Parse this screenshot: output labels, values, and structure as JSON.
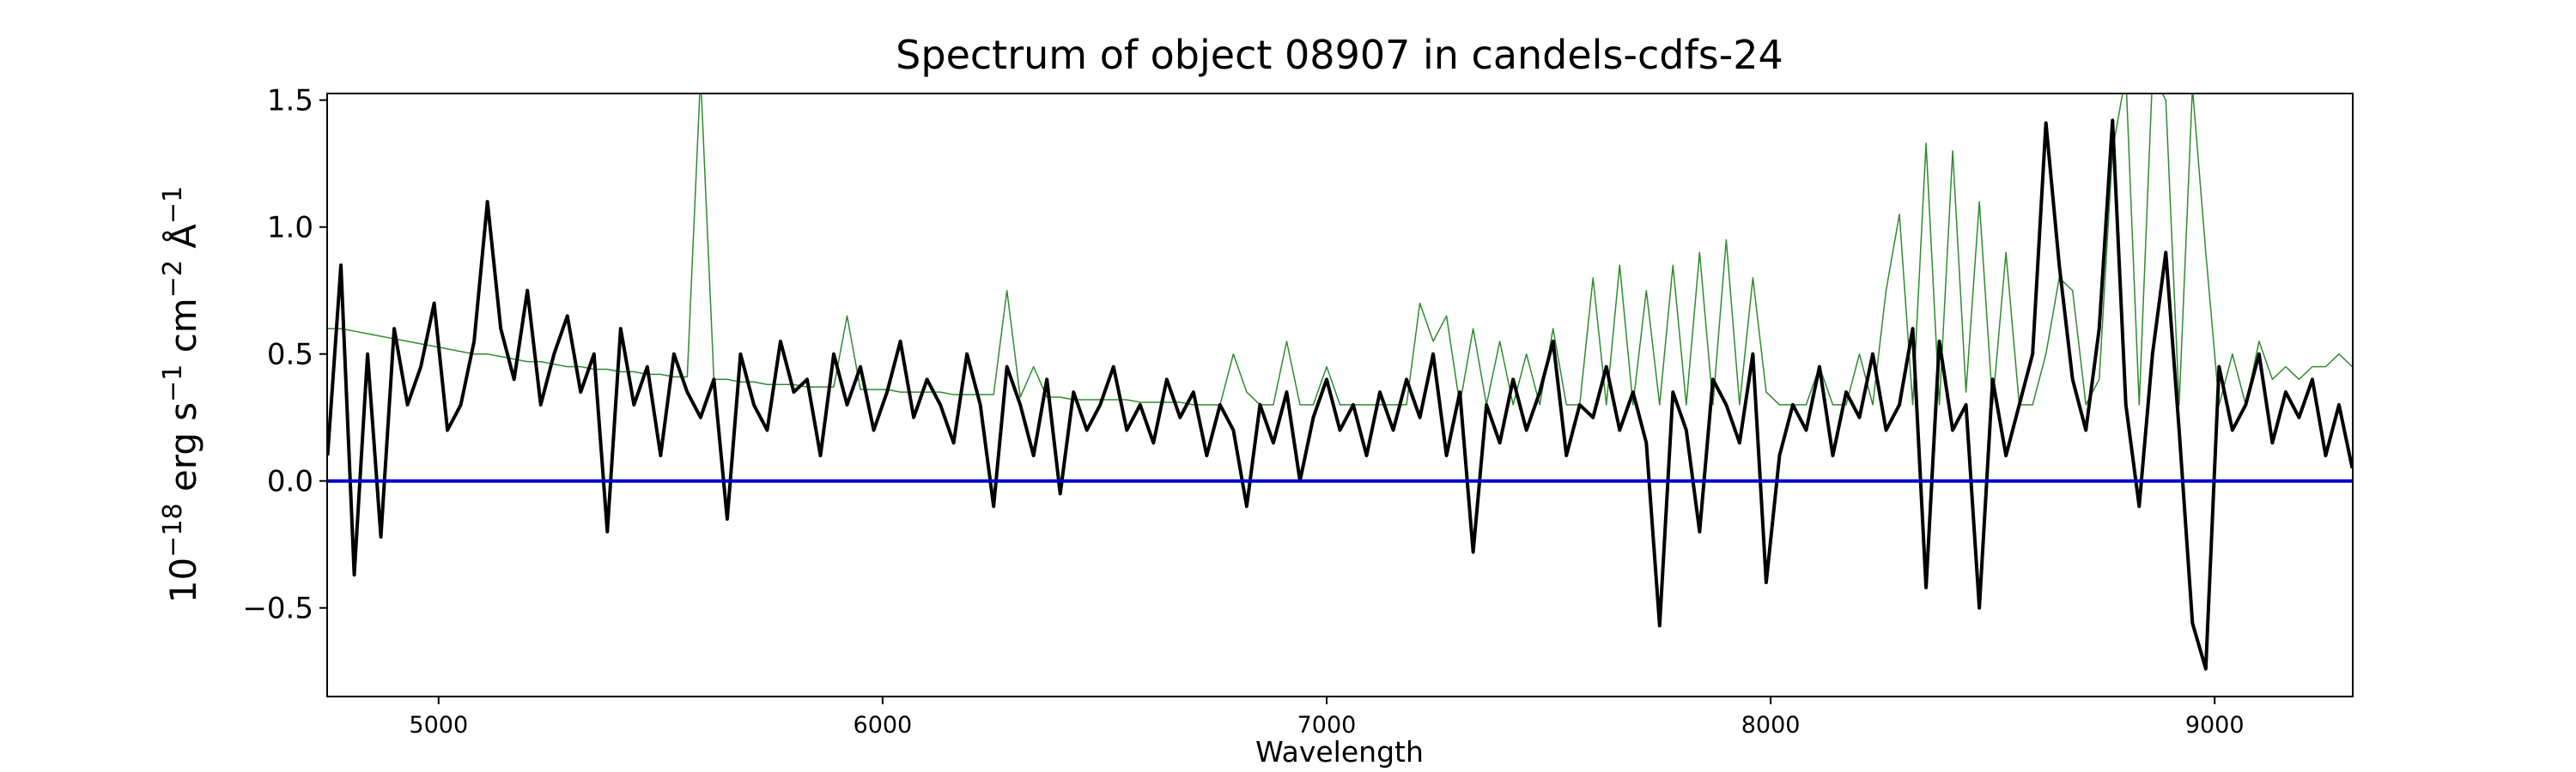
{
  "chart_data": {
    "type": "line",
    "title": "Spectrum of object 08907 in candels-cdfs-24",
    "xlabel": "Wavelength",
    "ylabel": [
      {
        "text": "10"
      },
      {
        "sup": "−18"
      },
      {
        "text": " erg s"
      },
      {
        "sup": "−1"
      },
      {
        "text": " cm"
      },
      {
        "sup": "−2"
      },
      {
        "text": " Å"
      },
      {
        "sup": "−1"
      }
    ],
    "xlim": [
      4749,
      9311
    ],
    "ylim": [
      -0.849,
      1.526
    ],
    "xticks": [
      5000,
      6000,
      7000,
      8000,
      9000
    ],
    "yticks": [
      {
        "value": -0.5,
        "label": "−0.5"
      },
      {
        "value": 0,
        "label": "0.0"
      },
      {
        "value": 0.5,
        "label": "0.5"
      },
      {
        "value": 1,
        "label": "1.0"
      },
      {
        "value": 1.5,
        "label": "1.5"
      }
    ],
    "grid": false,
    "zero_line": {
      "value": 0,
      "color": "#0000cc"
    },
    "x": [
      4750,
      4780,
      4810,
      4840,
      4870,
      4900,
      4930,
      4960,
      4990,
      5020,
      5050,
      5080,
      5110,
      5140,
      5170,
      5200,
      5230,
      5260,
      5290,
      5320,
      5350,
      5380,
      5410,
      5440,
      5470,
      5500,
      5530,
      5560,
      5590,
      5620,
      5650,
      5680,
      5710,
      5740,
      5770,
      5800,
      5830,
      5860,
      5890,
      5920,
      5950,
      5980,
      6010,
      6040,
      6070,
      6100,
      6130,
      6160,
      6190,
      6220,
      6250,
      6280,
      6310,
      6340,
      6370,
      6400,
      6430,
      6460,
      6490,
      6520,
      6550,
      6580,
      6610,
      6640,
      6670,
      6700,
      6730,
      6760,
      6790,
      6820,
      6850,
      6880,
      6910,
      6940,
      6970,
      7000,
      7030,
      7060,
      7090,
      7120,
      7150,
      7180,
      7210,
      7240,
      7270,
      7300,
      7330,
      7360,
      7390,
      7420,
      7450,
      7480,
      7510,
      7540,
      7570,
      7600,
      7630,
      7660,
      7690,
      7720,
      7750,
      7780,
      7810,
      7840,
      7870,
      7900,
      7930,
      7960,
      7990,
      8020,
      8050,
      8080,
      8110,
      8140,
      8170,
      8200,
      8230,
      8260,
      8290,
      8320,
      8350,
      8380,
      8410,
      8440,
      8470,
      8500,
      8530,
      8560,
      8590,
      8620,
      8650,
      8680,
      8710,
      8740,
      8770,
      8800,
      8830,
      8860,
      8890,
      8920,
      8950,
      8980,
      9010,
      9040,
      9070,
      9100,
      9130,
      9160,
      9190,
      9220,
      9250,
      9280,
      9310
    ],
    "series": [
      {
        "color": "#2e8b2e",
        "width": 1.5,
        "values": [
          0.6,
          0.6,
          0.59,
          0.58,
          0.57,
          0.56,
          0.55,
          0.54,
          0.53,
          0.52,
          0.51,
          0.5,
          0.5,
          0.49,
          0.48,
          0.47,
          0.47,
          0.46,
          0.45,
          0.45,
          0.44,
          0.44,
          0.43,
          0.43,
          0.42,
          0.42,
          0.41,
          0.41,
          1.6,
          0.4,
          0.4,
          0.39,
          0.39,
          0.38,
          0.38,
          0.38,
          0.37,
          0.37,
          0.37,
          0.65,
          0.36,
          0.36,
          0.36,
          0.35,
          0.35,
          0.35,
          0.35,
          0.34,
          0.34,
          0.34,
          0.34,
          0.75,
          0.33,
          0.45,
          0.33,
          0.33,
          0.32,
          0.32,
          0.32,
          0.32,
          0.32,
          0.31,
          0.31,
          0.31,
          0.31,
          0.3,
          0.3,
          0.3,
          0.5,
          0.35,
          0.3,
          0.3,
          0.55,
          0.3,
          0.3,
          0.45,
          0.3,
          0.3,
          0.3,
          0.3,
          0.3,
          0.3,
          0.7,
          0.55,
          0.65,
          0.3,
          0.6,
          0.3,
          0.55,
          0.3,
          0.5,
          0.3,
          0.6,
          0.3,
          0.3,
          0.8,
          0.3,
          0.85,
          0.3,
          0.75,
          0.3,
          0.85,
          0.3,
          0.9,
          0.3,
          0.95,
          0.3,
          0.8,
          0.35,
          0.3,
          0.3,
          0.3,
          0.45,
          0.3,
          0.3,
          0.5,
          0.3,
          0.75,
          1.05,
          0.3,
          1.33,
          0.3,
          1.3,
          0.35,
          1.1,
          0.3,
          0.9,
          0.3,
          0.3,
          0.5,
          0.8,
          0.75,
          0.3,
          0.4,
          1.3,
          1.6,
          0.3,
          1.6,
          1.5,
          0.3,
          1.55,
          0.9,
          0.3,
          0.5,
          0.3,
          0.55,
          0.4,
          0.45,
          0.4,
          0.45,
          0.45,
          0.5,
          0.45
        ]
      },
      {
        "color": "#000000",
        "width": 4,
        "values": [
          0.1,
          0.85,
          -0.37,
          0.5,
          -0.22,
          0.6,
          0.3,
          0.45,
          0.7,
          0.2,
          0.3,
          0.55,
          1.1,
          0.6,
          0.4,
          0.75,
          0.3,
          0.5,
          0.65,
          0.35,
          0.5,
          -0.2,
          0.6,
          0.3,
          0.45,
          0.1,
          0.5,
          0.35,
          0.25,
          0.4,
          -0.15,
          0.5,
          0.3,
          0.2,
          0.55,
          0.35,
          0.4,
          0.1,
          0.5,
          0.3,
          0.45,
          0.2,
          0.35,
          0.55,
          0.25,
          0.4,
          0.3,
          0.15,
          0.5,
          0.3,
          -0.1,
          0.45,
          0.3,
          0.1,
          0.4,
          -0.05,
          0.35,
          0.2,
          0.3,
          0.45,
          0.2,
          0.3,
          0.15,
          0.4,
          0.25,
          0.35,
          0.1,
          0.3,
          0.2,
          -0.1,
          0.3,
          0.15,
          0.35,
          0.0,
          0.25,
          0.4,
          0.2,
          0.3,
          0.1,
          0.35,
          0.2,
          0.4,
          0.25,
          0.5,
          0.1,
          0.35,
          -0.28,
          0.3,
          0.15,
          0.4,
          0.2,
          0.35,
          0.55,
          0.1,
          0.3,
          0.25,
          0.45,
          0.2,
          0.35,
          0.15,
          -0.57,
          0.35,
          0.2,
          -0.2,
          0.4,
          0.3,
          0.15,
          0.5,
          -0.4,
          0.1,
          0.3,
          0.2,
          0.45,
          0.1,
          0.35,
          0.25,
          0.5,
          0.2,
          0.3,
          0.6,
          -0.42,
          0.55,
          0.2,
          0.3,
          -0.5,
          0.4,
          0.1,
          0.3,
          0.5,
          1.41,
          0.85,
          0.4,
          0.2,
          0.6,
          1.42,
          0.3,
          -0.1,
          0.5,
          0.9,
          0.2,
          -0.56,
          -0.74,
          0.45,
          0.2,
          0.3,
          0.5,
          0.15,
          0.35,
          0.25,
          0.4,
          0.1,
          0.3,
          0.05
        ]
      }
    ]
  }
}
